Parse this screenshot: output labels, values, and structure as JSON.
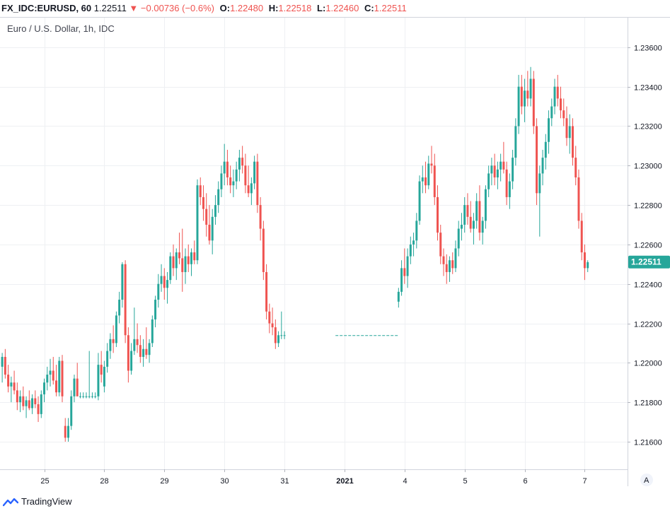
{
  "header": {
    "symbol": "FX_IDC:EURUSD, 60",
    "last": "1.22511",
    "change_arrow": "▼",
    "change": "−0.00736 (−0.6%)",
    "open_label": "O:",
    "open": "1.22480",
    "high_label": "H:",
    "high": "1.22518",
    "low_label": "L:",
    "low": "1.22460",
    "close_label": "C:",
    "close": "1.22511"
  },
  "subtitle": "Euro / U.S. Dollar, 1h, IDC",
  "price_badge": "1.22511",
  "auto_button": "A",
  "footer": {
    "brand": "TradingView"
  },
  "colors": {
    "up": "#26a69a",
    "down": "#ef5350",
    "grid": "#eef0f3",
    "axis": "#d1d4dc",
    "text": "#131722"
  },
  "chart_data": {
    "type": "candlestick",
    "title": "Euro / U.S. Dollar, 1h, IDC",
    "xlabel": "",
    "ylabel": "",
    "ylim": [
      1.2146,
      1.2375
    ],
    "yticks": [
      "1.23600",
      "1.23400",
      "1.23200",
      "1.23000",
      "1.22800",
      "1.22600",
      "1.22400",
      "1.22200",
      "1.22000",
      "1.21800",
      "1.21600"
    ],
    "xticks": [
      {
        "label": "25",
        "bar": 14
      },
      {
        "label": "28",
        "bar": 34
      },
      {
        "label": "29",
        "bar": 54
      },
      {
        "label": "30",
        "bar": 74
      },
      {
        "label": "31",
        "bar": 94
      },
      {
        "label": "2021",
        "bar": 114
      },
      {
        "label": "4",
        "bar": 134
      },
      {
        "label": "5",
        "bar": 154
      },
      {
        "label": "6",
        "bar": 174
      },
      {
        "label": "7",
        "bar": 194
      }
    ],
    "total_bars": 209,
    "gap": {
      "from_bar": 111,
      "to_bar": 132,
      "price": 1.22138
    },
    "bars": [
      [
        0,
        1.2198,
        1.2205,
        1.219,
        1.2203
      ],
      [
        1,
        1.2203,
        1.2207,
        1.2192,
        1.2194
      ],
      [
        2,
        1.2194,
        1.2199,
        1.2185,
        1.2188
      ],
      [
        3,
        1.2188,
        1.2193,
        1.218,
        1.219
      ],
      [
        4,
        1.219,
        1.2196,
        1.2184,
        1.2186
      ],
      [
        5,
        1.2186,
        1.219,
        1.2176,
        1.218
      ],
      [
        6,
        1.218,
        1.2186,
        1.2175,
        1.2183
      ],
      [
        7,
        1.2183,
        1.2188,
        1.2176,
        1.2178
      ],
      [
        8,
        1.2178,
        1.2183,
        1.2172,
        1.2181
      ],
      [
        9,
        1.2181,
        1.2186,
        1.2176,
        1.2177
      ],
      [
        10,
        1.2177,
        1.2184,
        1.2174,
        1.2182
      ],
      [
        11,
        1.2182,
        1.2186,
        1.2177,
        1.2179
      ],
      [
        12,
        1.2179,
        1.2183,
        1.217,
        1.2174
      ],
      [
        13,
        1.2174,
        1.2186,
        1.2172,
        1.2184
      ],
      [
        14,
        1.2184,
        1.2192,
        1.218,
        1.219
      ],
      [
        15,
        1.219,
        1.2198,
        1.2186,
        1.2194
      ],
      [
        16,
        1.2194,
        1.2202,
        1.2188,
        1.2196
      ],
      [
        17,
        1.2196,
        1.2203,
        1.2189,
        1.2191
      ],
      [
        18,
        1.2191,
        1.2199,
        1.2183,
        1.2185
      ],
      [
        19,
        1.2185,
        1.2203,
        1.2183,
        1.2201
      ],
      [
        20,
        1.2201,
        1.2204,
        1.218,
        1.2183
      ],
      [
        21,
        1.2168,
        1.2172,
        1.216,
        1.2162
      ],
      [
        22,
        1.2162,
        1.2172,
        1.216,
        1.2168
      ],
      [
        23,
        1.2168,
        1.2186,
        1.2166,
        1.2183
      ],
      [
        24,
        1.2183,
        1.2194,
        1.218,
        1.2192
      ],
      [
        25,
        1.2192,
        1.22,
        1.2183,
        1.2183
      ],
      [
        26,
        1.2183,
        1.2185,
        1.2182,
        1.2183
      ],
      [
        27,
        1.2183,
        1.2185,
        1.2182,
        1.2183
      ],
      [
        28,
        1.2183,
        1.2185,
        1.2182,
        1.2183
      ],
      [
        29,
        1.2183,
        1.2206,
        1.2182,
        1.2183
      ],
      [
        30,
        1.2183,
        1.2185,
        1.2182,
        1.2183
      ],
      [
        31,
        1.2183,
        1.2185,
        1.2182,
        1.2183
      ],
      [
        32,
        1.2183,
        1.2205,
        1.2181,
        1.2199
      ],
      [
        33,
        1.2199,
        1.2206,
        1.219,
        1.2194
      ],
      [
        34,
        1.2188,
        1.2201,
        1.2185,
        1.2198
      ],
      [
        35,
        1.2198,
        1.221,
        1.2195,
        1.2206
      ],
      [
        36,
        1.2206,
        1.2215,
        1.2202,
        1.2212
      ],
      [
        37,
        1.2212,
        1.2219,
        1.2205,
        1.221
      ],
      [
        38,
        1.221,
        1.2226,
        1.2208,
        1.2224
      ],
      [
        39,
        1.2224,
        1.2236,
        1.222,
        1.2232
      ],
      [
        40,
        1.2232,
        1.2251,
        1.2228,
        1.225
      ],
      [
        41,
        1.225,
        1.2252,
        1.221,
        1.2214
      ],
      [
        42,
        1.2214,
        1.2218,
        1.219,
        1.2196
      ],
      [
        43,
        1.2196,
        1.221,
        1.2194,
        1.2206
      ],
      [
        44,
        1.2206,
        1.2228,
        1.2204,
        1.2212
      ],
      [
        45,
        1.2212,
        1.222,
        1.2205,
        1.2209
      ],
      [
        46,
        1.2209,
        1.2214,
        1.22,
        1.2203
      ],
      [
        47,
        1.2203,
        1.2212,
        1.2198,
        1.2207
      ],
      [
        48,
        1.2207,
        1.2218,
        1.2202,
        1.2204
      ],
      [
        49,
        1.2204,
        1.2212,
        1.22,
        1.221
      ],
      [
        50,
        1.221,
        1.2224,
        1.2208,
        1.2222
      ],
      [
        51,
        1.2222,
        1.2234,
        1.2218,
        1.2232
      ],
      [
        52,
        1.2232,
        1.2245,
        1.2228,
        1.224
      ],
      [
        53,
        1.224,
        1.225,
        1.2236,
        1.2244
      ],
      [
        54,
        1.2244,
        1.2248,
        1.2232,
        1.2238
      ],
      [
        55,
        1.2238,
        1.2246,
        1.223,
        1.2242
      ],
      [
        56,
        1.2242,
        1.2256,
        1.224,
        1.2254
      ],
      [
        57,
        1.2254,
        1.226,
        1.2244,
        1.2248
      ],
      [
        58,
        1.2248,
        1.2258,
        1.2242,
        1.2256
      ],
      [
        59,
        1.2256,
        1.2266,
        1.225,
        1.2253
      ],
      [
        60,
        1.2253,
        1.2268,
        1.2236,
        1.2246
      ],
      [
        61,
        1.2246,
        1.2258,
        1.224,
        1.2254
      ],
      [
        62,
        1.2254,
        1.226,
        1.2246,
        1.225
      ],
      [
        63,
        1.225,
        1.2258,
        1.2244,
        1.2256
      ],
      [
        64,
        1.2256,
        1.2262,
        1.225,
        1.2252
      ],
      [
        65,
        1.2252,
        1.2293,
        1.225,
        1.229
      ],
      [
        66,
        1.229,
        1.2294,
        1.228,
        1.2284
      ],
      [
        67,
        1.2284,
        1.229,
        1.2272,
        1.2278
      ],
      [
        68,
        1.2278,
        1.2286,
        1.2264,
        1.227
      ],
      [
        69,
        1.227,
        1.228,
        1.226,
        1.2262
      ],
      [
        70,
        1.2262,
        1.2278,
        1.2255,
        1.2274
      ],
      [
        71,
        1.2274,
        1.2285,
        1.227,
        1.228
      ],
      [
        72,
        1.228,
        1.2292,
        1.2276,
        1.2288
      ],
      [
        73,
        1.2288,
        1.23,
        1.2284,
        1.2296
      ],
      [
        74,
        1.2296,
        1.2311,
        1.229,
        1.2302
      ],
      [
        75,
        1.2302,
        1.2308,
        1.229,
        1.2294
      ],
      [
        76,
        1.2294,
        1.23,
        1.2286,
        1.229
      ],
      [
        77,
        1.229,
        1.2298,
        1.2284,
        1.2292
      ],
      [
        78,
        1.2292,
        1.2302,
        1.2288,
        1.2298
      ],
      [
        79,
        1.2298,
        1.2308,
        1.2292,
        1.2304
      ],
      [
        80,
        1.2304,
        1.231,
        1.2296,
        1.23
      ],
      [
        81,
        1.23,
        1.2306,
        1.2286,
        1.229
      ],
      [
        82,
        1.229,
        1.23,
        1.2284,
        1.2286
      ],
      [
        83,
        1.2286,
        1.2294,
        1.228,
        1.2291
      ],
      [
        84,
        1.2291,
        1.2305,
        1.2288,
        1.2302
      ],
      [
        85,
        1.2302,
        1.2306,
        1.2276,
        1.228
      ],
      [
        86,
        1.228,
        1.2284,
        1.2262,
        1.2268
      ],
      [
        87,
        1.2268,
        1.2272,
        1.2242,
        1.2246
      ],
      [
        88,
        1.2246,
        1.225,
        1.2222,
        1.2226
      ],
      [
        89,
        1.2226,
        1.223,
        1.2215,
        1.222
      ],
      [
        90,
        1.222,
        1.2228,
        1.2214,
        1.2218
      ],
      [
        91,
        1.2218,
        1.2222,
        1.2207,
        1.221
      ],
      [
        92,
        1.221,
        1.2216,
        1.2208,
        1.2214
      ],
      [
        93,
        1.2214,
        1.2226,
        1.2212,
        1.2214
      ],
      [
        94,
        1.2214,
        1.2216,
        1.2212,
        1.2214
      ],
      [
        132,
        1.2231,
        1.2238,
        1.2228,
        1.2236
      ],
      [
        133,
        1.2236,
        1.2252,
        1.2234,
        1.2248
      ],
      [
        134,
        1.2248,
        1.2258,
        1.224,
        1.2244
      ],
      [
        135,
        1.2244,
        1.2258,
        1.2238,
        1.2254
      ],
      [
        136,
        1.2254,
        1.2264,
        1.225,
        1.226
      ],
      [
        137,
        1.226,
        1.2266,
        1.2254,
        1.2262
      ],
      [
        138,
        1.2262,
        1.2276,
        1.2258,
        1.2272
      ],
      [
        139,
        1.2272,
        1.2295,
        1.227,
        1.2292
      ],
      [
        140,
        1.2292,
        1.23,
        1.2286,
        1.2294
      ],
      [
        141,
        1.2294,
        1.2302,
        1.2286,
        1.229
      ],
      [
        142,
        1.229,
        1.2305,
        1.2288,
        1.2301
      ],
      [
        143,
        1.2301,
        1.231,
        1.2296,
        1.23
      ],
      [
        144,
        1.23,
        1.2306,
        1.228,
        1.2284
      ],
      [
        145,
        1.2284,
        1.229,
        1.2262,
        1.2266
      ],
      [
        146,
        1.2266,
        1.227,
        1.225,
        1.2254
      ],
      [
        147,
        1.2254,
        1.2258,
        1.2244,
        1.225
      ],
      [
        148,
        1.225,
        1.2255,
        1.224,
        1.2246
      ],
      [
        149,
        1.2246,
        1.2254,
        1.2241,
        1.2252
      ],
      [
        150,
        1.2252,
        1.2256,
        1.2245,
        1.2248
      ],
      [
        151,
        1.2248,
        1.2262,
        1.2246,
        1.2258
      ],
      [
        152,
        1.2258,
        1.2272,
        1.2254,
        1.2268
      ],
      [
        153,
        1.2268,
        1.2276,
        1.2262,
        1.227
      ],
      [
        154,
        1.227,
        1.2284,
        1.2266,
        1.228
      ],
      [
        155,
        1.228,
        1.2286,
        1.227,
        1.2274
      ],
      [
        156,
        1.2274,
        1.2282,
        1.2266,
        1.2268
      ],
      [
        157,
        1.2268,
        1.2276,
        1.226,
        1.2272
      ],
      [
        158,
        1.2272,
        1.2286,
        1.2268,
        1.2282
      ],
      [
        159,
        1.2282,
        1.229,
        1.2262,
        1.2266
      ],
      [
        160,
        1.2266,
        1.2274,
        1.226,
        1.2272
      ],
      [
        161,
        1.2272,
        1.229,
        1.2268,
        1.2288
      ],
      [
        162,
        1.2288,
        1.23,
        1.2284,
        1.2296
      ],
      [
        163,
        1.2296,
        1.2304,
        1.229,
        1.23
      ],
      [
        164,
        1.23,
        1.2306,
        1.229,
        1.2294
      ],
      [
        165,
        1.2294,
        1.2302,
        1.2288,
        1.2298
      ],
      [
        166,
        1.2298,
        1.2306,
        1.2292,
        1.2302
      ],
      [
        167,
        1.2302,
        1.2312,
        1.2296,
        1.2298
      ],
      [
        168,
        1.2298,
        1.2302,
        1.228,
        1.2284
      ],
      [
        169,
        1.2284,
        1.2296,
        1.2278,
        1.2292
      ],
      [
        170,
        1.2292,
        1.2308,
        1.2288,
        1.2304
      ],
      [
        171,
        1.2304,
        1.2324,
        1.23,
        1.232
      ],
      [
        172,
        1.232,
        1.2346,
        1.2316,
        1.234
      ],
      [
        173,
        1.234,
        1.2346,
        1.2326,
        1.233
      ],
      [
        174,
        1.233,
        1.2344,
        1.2322,
        1.2338
      ],
      [
        175,
        1.2338,
        1.2348,
        1.233,
        1.2334
      ],
      [
        176,
        1.2334,
        1.235,
        1.233,
        1.2344
      ],
      [
        177,
        1.2344,
        1.2348,
        1.2316,
        1.232
      ],
      [
        178,
        1.232,
        1.2324,
        1.228,
        1.2286
      ],
      [
        179,
        1.2286,
        1.23,
        1.2264,
        1.2296
      ],
      [
        180,
        1.2296,
        1.2308,
        1.229,
        1.2304
      ],
      [
        181,
        1.2304,
        1.2316,
        1.2298,
        1.2312
      ],
      [
        182,
        1.2312,
        1.2328,
        1.2306,
        1.2324
      ],
      [
        183,
        1.2324,
        1.2334,
        1.232,
        1.233
      ],
      [
        184,
        1.233,
        1.2344,
        1.2326,
        1.234
      ],
      [
        185,
        1.234,
        1.2346,
        1.233,
        1.2334
      ],
      [
        186,
        1.2334,
        1.234,
        1.2324,
        1.2328
      ],
      [
        187,
        1.2328,
        1.2334,
        1.232,
        1.2324
      ],
      [
        188,
        1.2324,
        1.233,
        1.231,
        1.2314
      ],
      [
        189,
        1.2314,
        1.2326,
        1.2306,
        1.232
      ],
      [
        190,
        1.232,
        1.2324,
        1.23,
        1.2304
      ],
      [
        191,
        1.2304,
        1.231,
        1.229,
        1.2294
      ],
      [
        192,
        1.2294,
        1.2298,
        1.2268,
        1.2272
      ],
      [
        193,
        1.2272,
        1.2276,
        1.2252,
        1.2256
      ],
      [
        194,
        1.2256,
        1.226,
        1.2242,
        1.2248
      ],
      [
        195,
        1.2248,
        1.2252,
        1.2246,
        1.2251
      ]
    ]
  }
}
